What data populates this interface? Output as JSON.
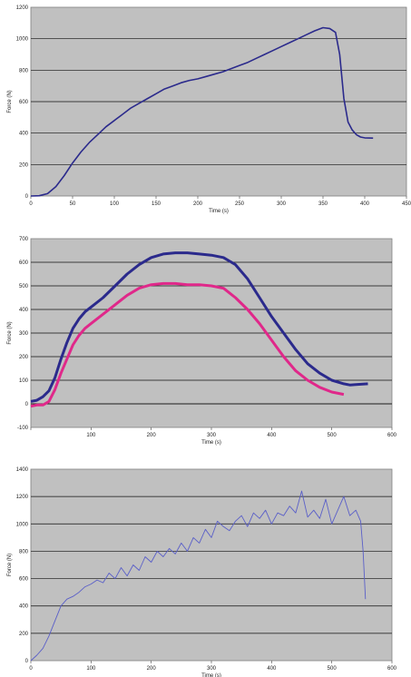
{
  "chart_data": [
    {
      "type": "line",
      "title": "",
      "xlabel": "Time (s)",
      "ylabel": "Force (N)",
      "xlim": [
        0,
        450
      ],
      "ylim": [
        0,
        1200
      ],
      "xticks": [
        "0",
        "50",
        "100",
        "150",
        "200",
        "250",
        "300",
        "350",
        "400",
        "450"
      ],
      "yticks": [
        "0",
        "200",
        "400",
        "600",
        "800",
        "1000",
        "1200"
      ],
      "grid": true,
      "legend": "none",
      "series": [
        {
          "color": "#2b2a8c",
          "x": [
            0,
            10,
            20,
            30,
            40,
            50,
            60,
            70,
            80,
            90,
            100,
            110,
            120,
            130,
            140,
            150,
            160,
            170,
            180,
            190,
            200,
            210,
            220,
            230,
            240,
            250,
            260,
            270,
            280,
            290,
            300,
            310,
            320,
            330,
            340,
            350,
            358,
            365,
            370,
            375,
            380,
            385,
            390,
            395,
            400,
            410
          ],
          "y": [
            0,
            2,
            15,
            60,
            130,
            210,
            280,
            340,
            390,
            440,
            480,
            520,
            560,
            590,
            620,
            650,
            680,
            700,
            720,
            735,
            745,
            760,
            775,
            790,
            810,
            830,
            850,
            875,
            900,
            925,
            950,
            975,
            1000,
            1025,
            1050,
            1070,
            1065,
            1040,
            900,
            620,
            470,
            420,
            390,
            375,
            370,
            368
          ]
        }
      ]
    },
    {
      "type": "line",
      "title": "",
      "xlabel": "Time (s)",
      "ylabel": "Force (N)",
      "xlim": [
        0,
        600
      ],
      "ylim": [
        -100,
        700
      ],
      "xticks": [
        "",
        "100",
        "200",
        "300",
        "400",
        "500",
        "600"
      ],
      "yticks": [
        "-100",
        "0",
        "100",
        "200",
        "300",
        "400",
        "500",
        "600",
        "700"
      ],
      "grid": true,
      "legend": "none",
      "series": [
        {
          "color": "#2b2a8c",
          "x": [
            0,
            10,
            20,
            30,
            40,
            50,
            60,
            70,
            80,
            90,
            100,
            120,
            140,
            160,
            180,
            200,
            220,
            240,
            260,
            280,
            300,
            320,
            340,
            360,
            380,
            400,
            420,
            440,
            460,
            480,
            500,
            520,
            530,
            540,
            560
          ],
          "y": [
            10,
            15,
            30,
            55,
            110,
            190,
            260,
            320,
            360,
            390,
            410,
            450,
            500,
            550,
            590,
            620,
            635,
            640,
            640,
            635,
            630,
            620,
            590,
            530,
            450,
            370,
            300,
            230,
            170,
            130,
            100,
            85,
            80,
            82,
            85
          ]
        },
        {
          "color": "#e0288a",
          "x": [
            0,
            10,
            20,
            30,
            40,
            50,
            60,
            70,
            80,
            90,
            100,
            120,
            140,
            160,
            180,
            200,
            220,
            240,
            260,
            280,
            300,
            320,
            340,
            360,
            380,
            400,
            420,
            440,
            460,
            480,
            500,
            520
          ],
          "y": [
            -10,
            -5,
            -5,
            10,
            60,
            130,
            190,
            250,
            290,
            320,
            340,
            380,
            420,
            460,
            490,
            505,
            510,
            510,
            505,
            505,
            500,
            490,
            450,
            400,
            340,
            270,
            200,
            140,
            100,
            70,
            50,
            40
          ]
        }
      ]
    },
    {
      "type": "line",
      "title": "",
      "xlabel": "Time (s)",
      "ylabel": "Force (N)",
      "xlim": [
        0,
        600
      ],
      "ylim": [
        0,
        1400
      ],
      "xticks": [
        "0",
        "100",
        "200",
        "300",
        "400",
        "500",
        "600"
      ],
      "yticks": [
        "0",
        "200",
        "400",
        "600",
        "800",
        "1000",
        "1200",
        "1400"
      ],
      "grid": true,
      "legend": "none",
      "series": [
        {
          "color": "#5a5fc8",
          "x": [
            0,
            10,
            20,
            30,
            40,
            50,
            60,
            70,
            80,
            90,
            100,
            110,
            120,
            130,
            140,
            150,
            160,
            170,
            180,
            190,
            200,
            210,
            220,
            230,
            240,
            250,
            260,
            270,
            280,
            290,
            300,
            310,
            320,
            330,
            340,
            350,
            360,
            370,
            380,
            390,
            400,
            410,
            420,
            430,
            440,
            450,
            460,
            470,
            480,
            490,
            500,
            510,
            520,
            530,
            540,
            548,
            552,
            556
          ],
          "y": [
            0,
            40,
            90,
            180,
            290,
            400,
            450,
            470,
            500,
            540,
            560,
            590,
            570,
            640,
            600,
            680,
            620,
            700,
            660,
            760,
            720,
            800,
            760,
            820,
            780,
            860,
            800,
            900,
            860,
            960,
            900,
            1020,
            980,
            950,
            1020,
            1060,
            980,
            1080,
            1040,
            1100,
            1000,
            1080,
            1060,
            1130,
            1080,
            1240,
            1050,
            1100,
            1040,
            1180,
            1000,
            1100,
            1200,
            1060,
            1100,
            1020,
            800,
            450
          ]
        }
      ]
    }
  ]
}
